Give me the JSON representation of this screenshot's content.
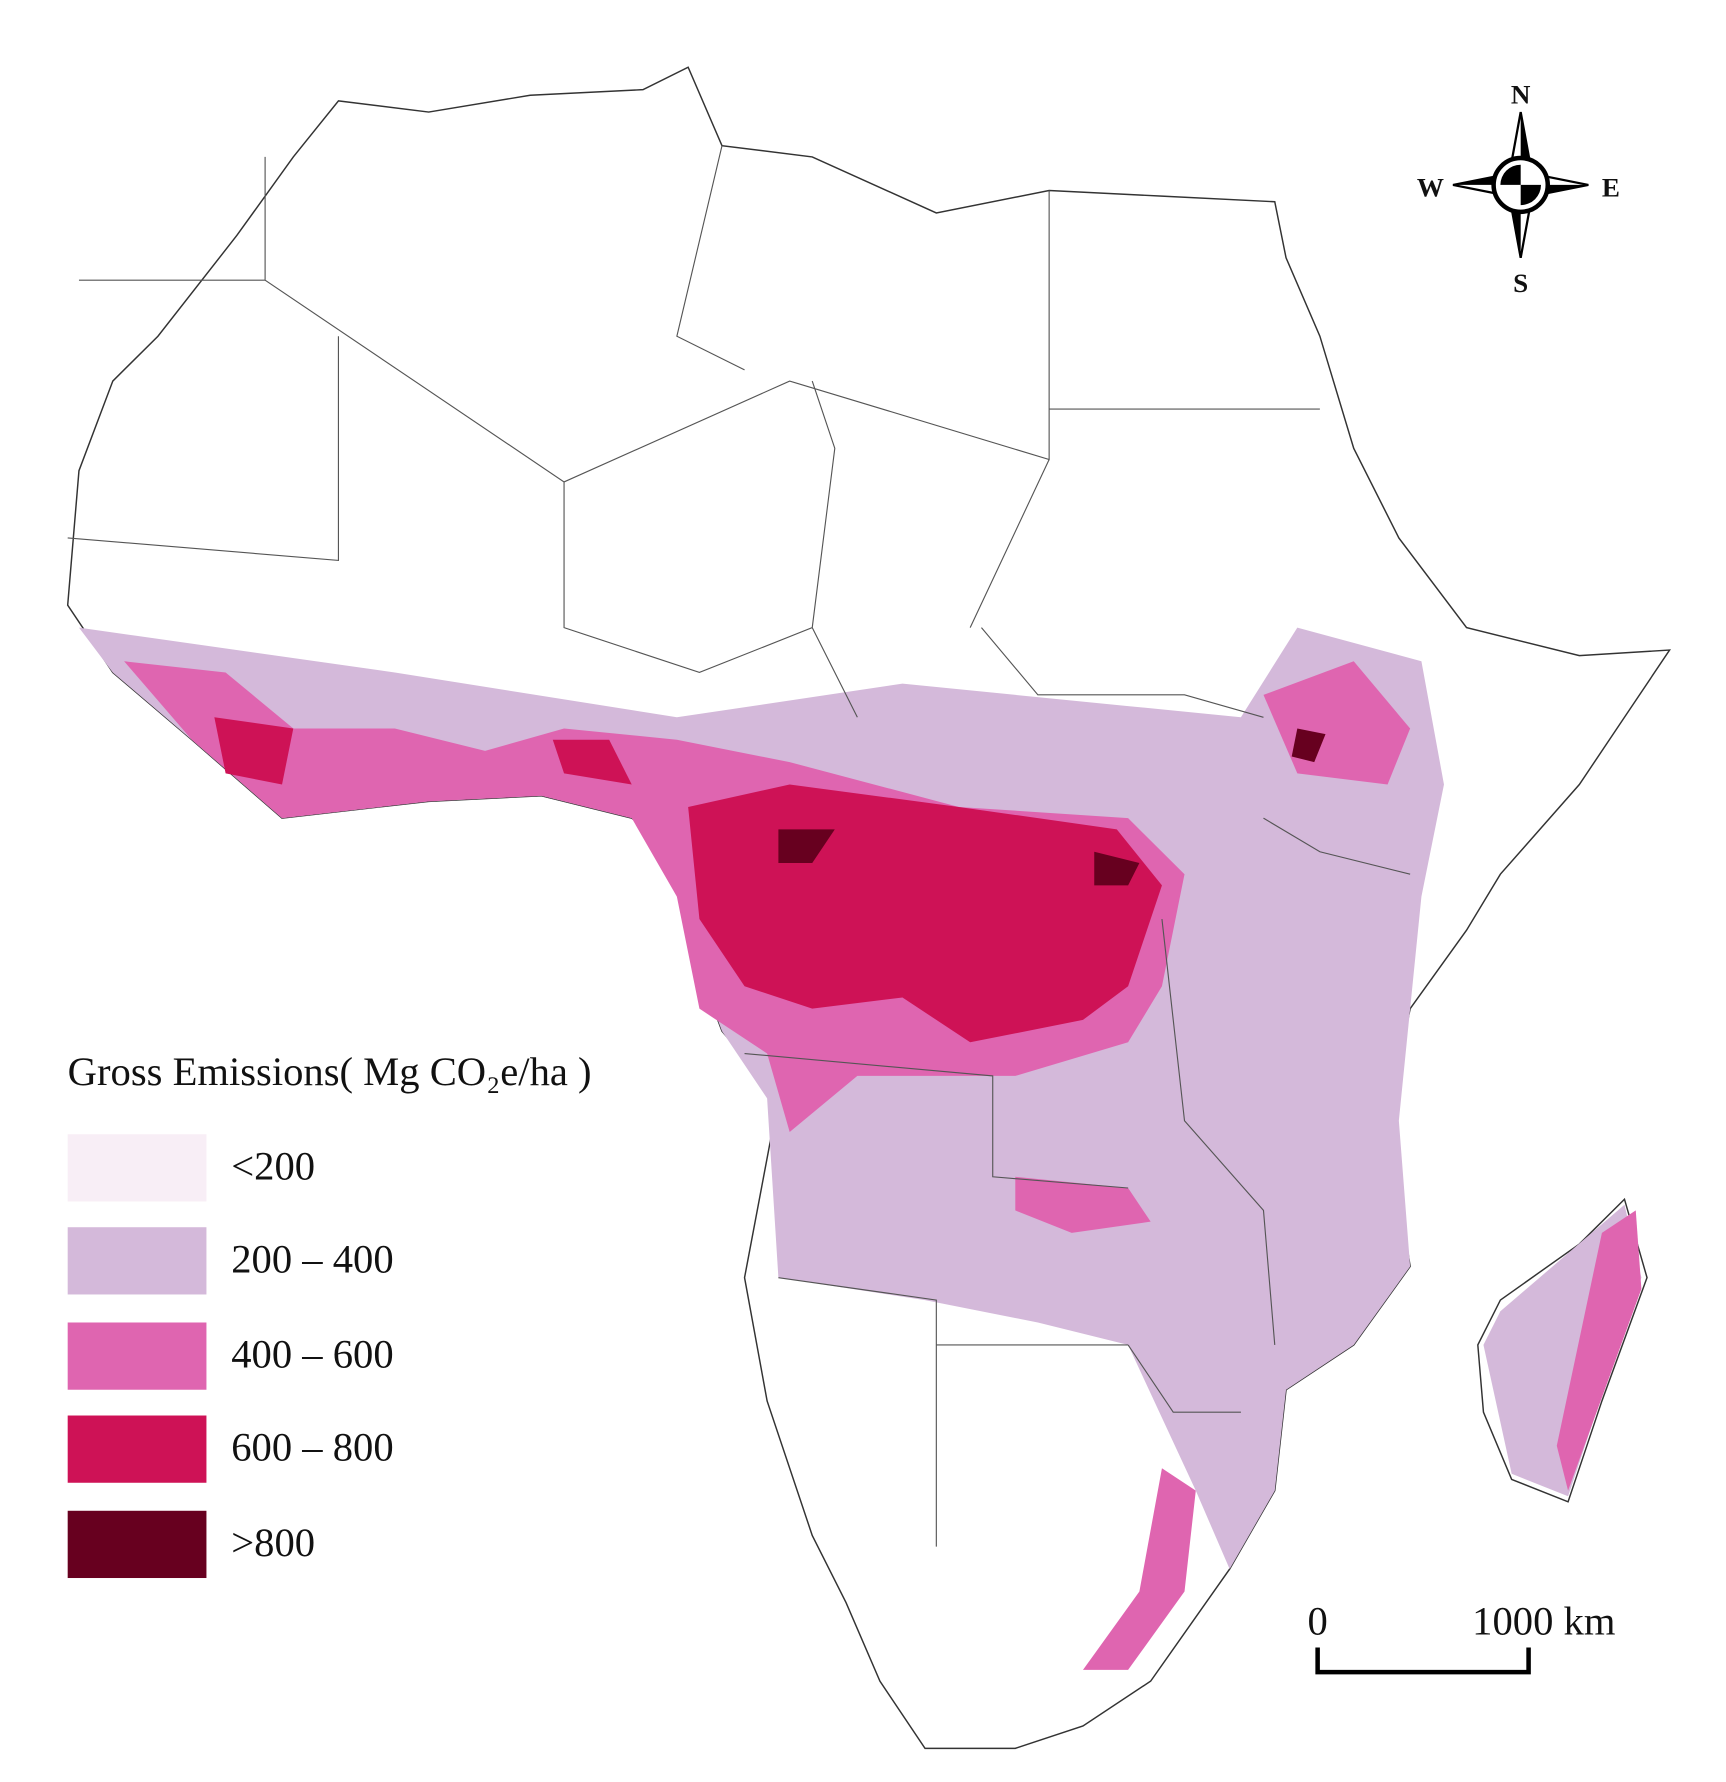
{
  "legend": {
    "title": "Gross Emissions( Mg CO₂e/ha )",
    "items": [
      {
        "label": "<200",
        "color": "#f8eef6"
      },
      {
        "label": "200 – 400",
        "color": "#d4b9da"
      },
      {
        "label": "400 – 600",
        "color": "#df65b0"
      },
      {
        "label": "600 – 800",
        "color": "#ce1256"
      },
      {
        "label": ">800",
        "color": "#67001f"
      }
    ]
  },
  "compass": {
    "north": "N",
    "south": "S",
    "east": "E",
    "west": "W"
  },
  "scale_bar": {
    "start_label": "0",
    "end_label": "1000 km"
  }
}
